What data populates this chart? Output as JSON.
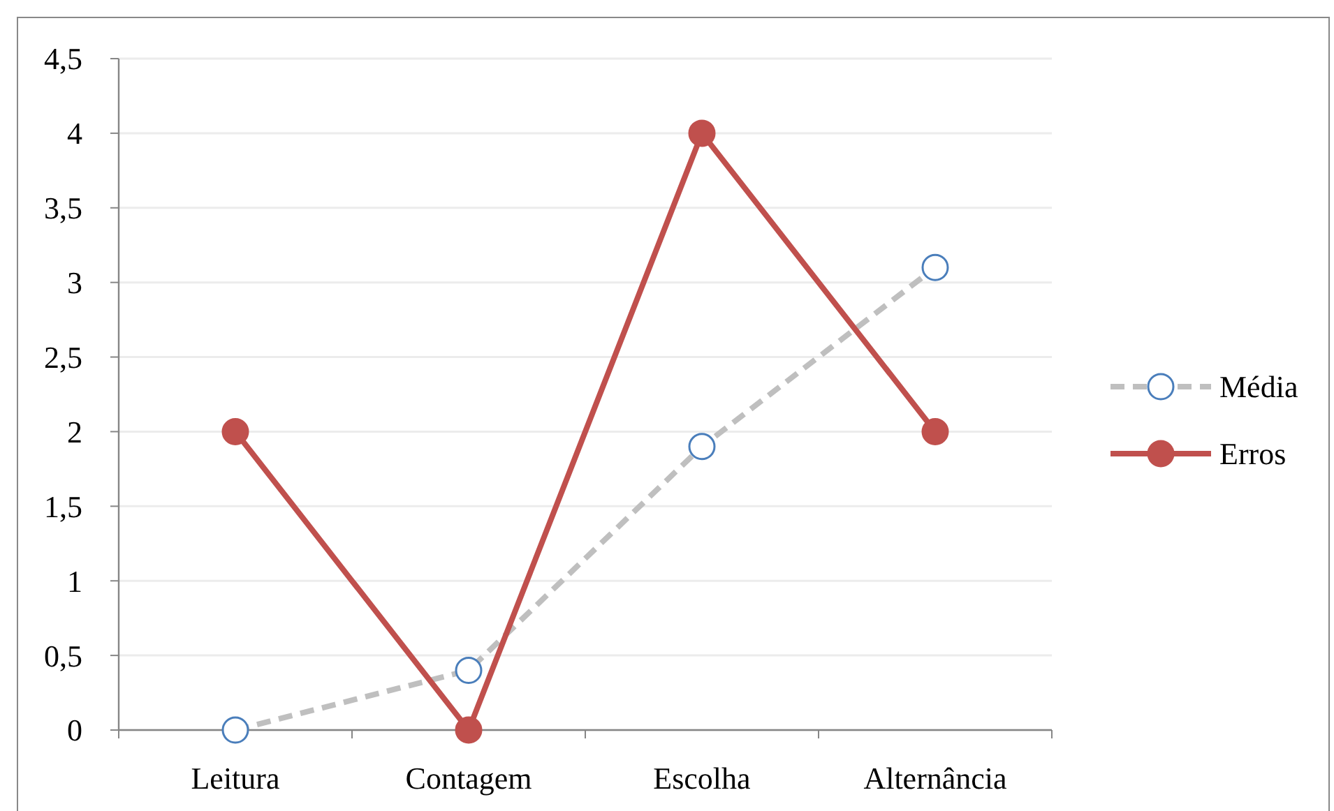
{
  "chart_data": {
    "type": "line",
    "categories": [
      "Leitura",
      "Contagem",
      "Escolha",
      "Alternância"
    ],
    "series": [
      {
        "name": "Média",
        "color": "#bfbfbf",
        "values": [
          0,
          0.4,
          1.9,
          3.1
        ],
        "line_style": "dashed",
        "marker": "circle"
      },
      {
        "name": "Erros",
        "color": "#c0504d",
        "values": [
          2,
          0,
          4,
          2
        ],
        "line_style": "solid",
        "marker": "circle"
      }
    ],
    "ylim": [
      0,
      4.5
    ],
    "yticks": [
      {
        "value": 0,
        "label": "0"
      },
      {
        "value": 0.5,
        "label": "0,5"
      },
      {
        "value": 1,
        "label": "1"
      },
      {
        "value": 1.5,
        "label": "1,5"
      },
      {
        "value": 2,
        "label": "2"
      },
      {
        "value": 2.5,
        "label": "2,5"
      },
      {
        "value": 3,
        "label": "3"
      },
      {
        "value": 3.5,
        "label": "3,5"
      },
      {
        "value": 4,
        "label": "4"
      },
      {
        "value": 4.5,
        "label": "4,5"
      }
    ],
    "grid": "y",
    "legend": "right"
  }
}
